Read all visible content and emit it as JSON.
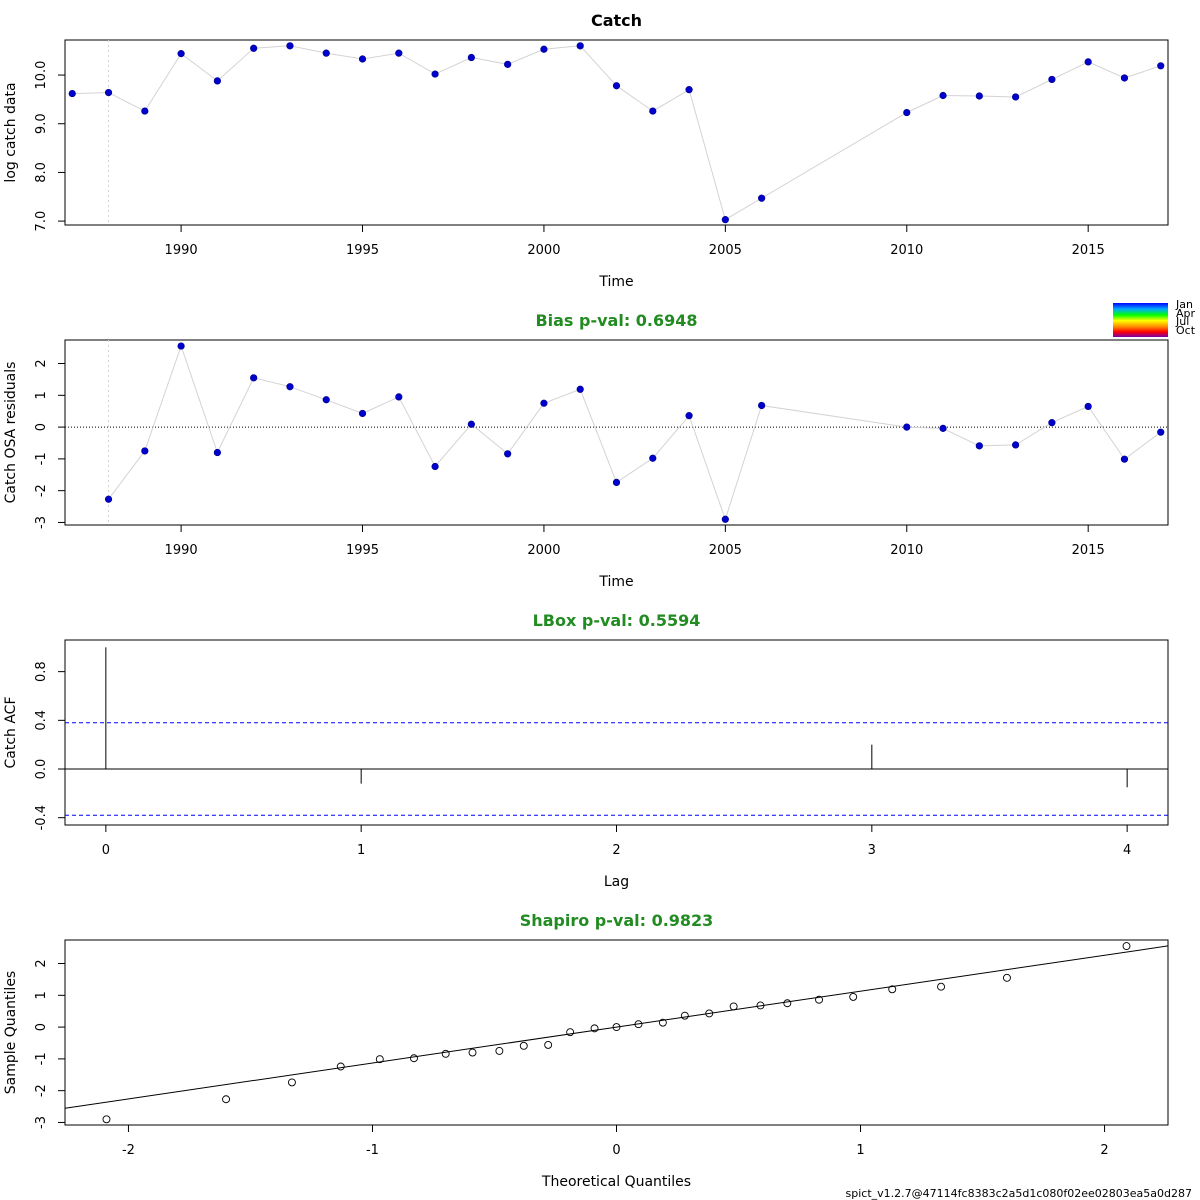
{
  "footer": "spict_v1.2.7@47114fc8383c2a5d1c080f02ee02803ea5a0d287",
  "colors": {
    "point": "#0000cd",
    "line": "#d3d3d3",
    "green": "#228b22",
    "blue_dash": "#0000ff",
    "black": "#000000"
  },
  "legend": {
    "labels": [
      "Jan",
      "Apr",
      "Jul",
      "Oct"
    ]
  },
  "chart_data": [
    {
      "type": "line",
      "title": "Catch",
      "xlabel": "Time",
      "ylabel": "log catch data",
      "xlim": [
        1986.8,
        2017.2
      ],
      "ylim": [
        6.92,
        10.72
      ],
      "xticks": [
        1990,
        1995,
        2000,
        2005,
        2010,
        2015
      ],
      "yticks": [
        "7.0",
        "8.0",
        "9.0",
        "10.0"
      ],
      "vline": 1988,
      "x": [
        1987,
        1988,
        1989,
        1990,
        1991,
        1992,
        1993,
        1994,
        1995,
        1996,
        1997,
        1998,
        1999,
        2000,
        2001,
        2002,
        2003,
        2004,
        2005,
        2006,
        2010,
        2011,
        2012,
        2013,
        2014,
        2015,
        2016,
        2017
      ],
      "y": [
        9.62,
        9.64,
        9.26,
        10.44,
        9.88,
        10.55,
        10.6,
        10.45,
        10.33,
        10.45,
        10.02,
        10.36,
        10.22,
        10.53,
        10.6,
        9.78,
        9.26,
        9.7,
        7.03,
        7.47,
        9.23,
        9.58,
        9.57,
        9.55,
        9.91,
        10.27,
        9.94,
        10.19
      ]
    },
    {
      "type": "line",
      "title": "Bias p-val: 0.6948",
      "xlabel": "Time",
      "ylabel": "Catch OSA residuals",
      "xlim": [
        1986.8,
        2017.2
      ],
      "ylim": [
        -3.08,
        2.74
      ],
      "xticks": [
        1990,
        1995,
        2000,
        2005,
        2010,
        2015
      ],
      "yticks": [
        "-3",
        "-2",
        "-1",
        "0",
        "1",
        "2"
      ],
      "vline": 1988,
      "hline": 0,
      "x": [
        1988,
        1989,
        1990,
        1991,
        1992,
        1993,
        1994,
        1995,
        1996,
        1997,
        1998,
        1999,
        2000,
        2001,
        2002,
        2003,
        2004,
        2005,
        2006,
        2010,
        2011,
        2012,
        2013,
        2014,
        2015,
        2016,
        2017
      ],
      "y": [
        -2.27,
        -0.75,
        2.55,
        -0.8,
        1.55,
        1.27,
        0.86,
        0.43,
        0.95,
        -1.24,
        0.09,
        -0.84,
        0.75,
        1.19,
        -1.74,
        -0.98,
        0.36,
        -2.9,
        0.68,
        0.0,
        -0.04,
        -0.59,
        -0.56,
        0.14,
        0.65,
        -1.01,
        -0.16
      ]
    },
    {
      "type": "bar",
      "title": "LBox p-val: 0.5594",
      "xlabel": "Lag",
      "ylabel": "Catch ACF",
      "xlim": [
        -0.16,
        4.16
      ],
      "ylim": [
        -0.46,
        1.06
      ],
      "xticks": [
        "0",
        "1",
        "2",
        "3",
        "4"
      ],
      "yticks": [
        "-0.4",
        "0.0",
        "0.4",
        "0.8"
      ],
      "ci": 0.38,
      "x": [
        0,
        1,
        2,
        3,
        4
      ],
      "values": [
        1.0,
        -0.12,
        0.0,
        0.2,
        -0.15
      ]
    },
    {
      "type": "scatter",
      "title": "Shapiro p-val: 0.9823",
      "xlabel": "Theoretical Quantiles",
      "ylabel": "Sample Quantiles",
      "xlim": [
        -2.26,
        2.26
      ],
      "ylim": [
        -3.08,
        2.74
      ],
      "xticks": [
        "-2",
        "-1",
        "0",
        "1",
        "2"
      ],
      "yticks": [
        "-3",
        "-2",
        "-1",
        "0",
        "1",
        "2"
      ],
      "qqline": {
        "slope": 1.13,
        "intercept": 0.0
      },
      "x": [
        -2.09,
        -1.6,
        -1.33,
        -1.13,
        -0.97,
        -0.83,
        -0.7,
        -0.59,
        -0.48,
        -0.38,
        -0.28,
        -0.19,
        -0.09,
        0.0,
        0.09,
        0.19,
        0.28,
        0.38,
        0.48,
        0.59,
        0.7,
        0.83,
        0.97,
        1.13,
        1.33,
        1.6,
        2.09
      ],
      "y": [
        -2.9,
        -2.27,
        -1.74,
        -1.24,
        -1.01,
        -0.98,
        -0.84,
        -0.8,
        -0.75,
        -0.59,
        -0.56,
        -0.16,
        -0.04,
        0.0,
        0.09,
        0.14,
        0.36,
        0.43,
        0.65,
        0.68,
        0.75,
        0.86,
        0.95,
        1.19,
        1.27,
        1.55,
        2.55
      ]
    }
  ]
}
